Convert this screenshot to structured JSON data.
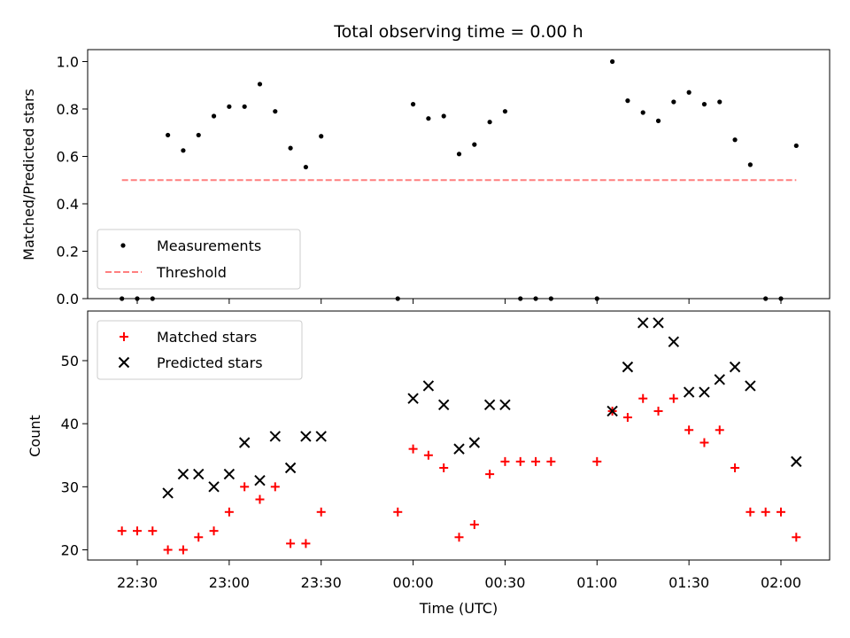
{
  "chart_data": [
    {
      "type": "scatter",
      "title": "Total observing time = 0.00 h",
      "ylabel": "Matched/Predicted stars",
      "xlabel": "",
      "ylim": [
        0.0,
        1.05
      ],
      "yticks": [
        "0.0",
        "0.2",
        "0.4",
        "0.6",
        "0.8",
        "1.0"
      ],
      "legend": {
        "placement": "lower-left",
        "entries": [
          "Measurements",
          "Threshold"
        ]
      },
      "series": [
        {
          "name": "Measurements",
          "color": "#000000",
          "marker": "dot",
          "x": [
            "22:25",
            "22:30",
            "22:35",
            "22:40",
            "22:45",
            "22:50",
            "22:55",
            "23:00",
            "23:05",
            "23:10",
            "23:15",
            "23:20",
            "23:25",
            "23:30",
            "23:55",
            "00:00",
            "00:05",
            "00:10",
            "00:15",
            "00:20",
            "00:25",
            "00:30",
            "00:35",
            "00:40",
            "00:45",
            "01:00",
            "01:05",
            "01:10",
            "01:15",
            "01:20",
            "01:25",
            "01:30",
            "01:35",
            "01:40",
            "01:45",
            "01:50",
            "01:55",
            "02:00",
            "02:05"
          ],
          "y": [
            0.0,
            0.0,
            0.0,
            0.69,
            0.625,
            0.69,
            0.77,
            0.81,
            0.81,
            0.905,
            0.79,
            0.635,
            0.555,
            0.685,
            0.0,
            0.82,
            0.76,
            0.77,
            0.61,
            0.65,
            0.745,
            0.79,
            0.0,
            0.0,
            0.0,
            0.0,
            1.0,
            0.835,
            0.785,
            0.75,
            0.83,
            0.87,
            0.82,
            0.83,
            0.67,
            0.565,
            0.0,
            0.0,
            0.645
          ]
        },
        {
          "name": "Threshold",
          "color": "#ff7f7f",
          "style": "dashed",
          "x": [
            "22:25",
            "02:05"
          ],
          "y": [
            0.5,
            0.5
          ]
        }
      ]
    },
    {
      "type": "scatter",
      "title": "",
      "ylabel": "Count",
      "xlabel": "Time (UTC)",
      "ylim": [
        18,
        58
      ],
      "yticks": [
        "20",
        "30",
        "40",
        "50"
      ],
      "xticks": [
        "22:30",
        "23:00",
        "23:30",
        "00:00",
        "00:30",
        "01:00",
        "01:30",
        "02:00"
      ],
      "legend": {
        "placement": "top-left",
        "entries": [
          "Matched stars",
          "Predicted stars"
        ]
      },
      "series": [
        {
          "name": "Matched stars",
          "color": "#ff0000",
          "marker": "plus",
          "x": [
            "22:25",
            "22:30",
            "22:35",
            "22:40",
            "22:45",
            "22:50",
            "22:55",
            "23:00",
            "23:05",
            "23:10",
            "23:15",
            "23:20",
            "23:25",
            "23:30",
            "23:55",
            "00:00",
            "00:05",
            "00:10",
            "00:15",
            "00:20",
            "00:25",
            "00:30",
            "00:35",
            "00:40",
            "00:45",
            "01:00",
            "01:05",
            "01:10",
            "01:15",
            "01:20",
            "01:25",
            "01:30",
            "01:35",
            "01:40",
            "01:45",
            "01:50",
            "01:55",
            "02:00",
            "02:05"
          ],
          "y": [
            23,
            23,
            23,
            20,
            20,
            22,
            23,
            26,
            30,
            28,
            30,
            21,
            21,
            26,
            26,
            36,
            35,
            33,
            22,
            24,
            32,
            34,
            34,
            34,
            34,
            34,
            42,
            41,
            44,
            42,
            44,
            39,
            37,
            39,
            33,
            26,
            26,
            26,
            22
          ]
        },
        {
          "name": "Predicted stars",
          "color": "#000000",
          "marker": "x",
          "x": [
            "22:40",
            "22:45",
            "22:50",
            "22:55",
            "23:00",
            "23:05",
            "23:10",
            "23:15",
            "23:20",
            "23:25",
            "23:30",
            "00:00",
            "00:05",
            "00:10",
            "00:15",
            "00:20",
            "00:25",
            "00:30",
            "01:05",
            "01:10",
            "01:15",
            "01:20",
            "01:25",
            "01:30",
            "01:35",
            "01:40",
            "01:45",
            "01:50",
            "02:05"
          ],
          "y": [
            29,
            32,
            32,
            30,
            32,
            37,
            31,
            38,
            33,
            38,
            38,
            44,
            46,
            43,
            36,
            37,
            43,
            43,
            42,
            49,
            56,
            56,
            53,
            45,
            45,
            47,
            49,
            46,
            34
          ]
        }
      ]
    }
  ]
}
